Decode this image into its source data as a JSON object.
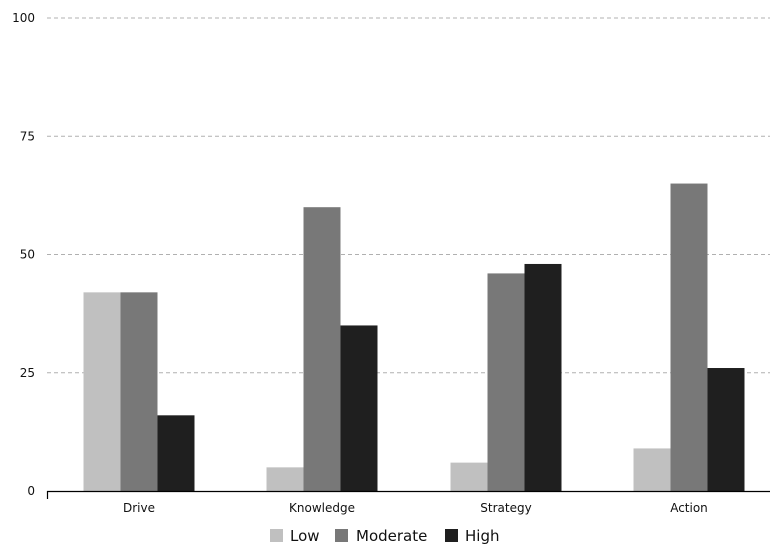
{
  "chart_data": {
    "type": "bar",
    "title": "",
    "xlabel": "",
    "ylabel": "",
    "categories": [
      "Drive",
      "Knowledge",
      "Strategy",
      "Action"
    ],
    "series": [
      {
        "name": "Low",
        "color": "#c0c0c0",
        "values": [
          42,
          5,
          6,
          9
        ]
      },
      {
        "name": "Moderate",
        "color": "#787878",
        "values": [
          42,
          60,
          46,
          65
        ]
      },
      {
        "name": "High",
        "color": "#1f1f1f",
        "values": [
          16,
          35,
          48,
          26
        ]
      }
    ],
    "ylim": [
      0,
      100
    ],
    "yticks": [
      "0",
      "25",
      "50",
      "75",
      "100"
    ],
    "grid": true,
    "legend_position": "bottom-center"
  }
}
